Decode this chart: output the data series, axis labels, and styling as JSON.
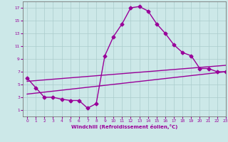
{
  "line1_x": [
    0,
    1,
    2,
    3,
    4,
    5,
    6,
    7,
    8,
    9,
    10,
    11,
    12,
    13,
    14,
    15,
    16,
    17,
    18,
    19,
    20,
    21,
    22,
    23
  ],
  "line1_y": [
    6.0,
    4.5,
    3.0,
    3.0,
    2.7,
    2.5,
    2.5,
    1.3,
    2.0,
    9.5,
    12.5,
    14.5,
    17.0,
    17.2,
    16.5,
    14.5,
    13.0,
    11.2,
    10.0,
    9.5,
    7.5,
    7.5,
    7.0,
    7.0
  ],
  "line2_x": [
    0,
    23
  ],
  "line2_y": [
    5.5,
    8.0
  ],
  "line3_x": [
    0,
    23
  ],
  "line3_y": [
    3.5,
    7.0
  ],
  "line_color": "#990099",
  "bg_color": "#cce8e8",
  "grid_color": "#aacccc",
  "xlabel": "Windchill (Refroidissement éolien,°C)",
  "xlim": [
    -0.5,
    23
  ],
  "ylim": [
    0,
    18
  ],
  "xticks": [
    0,
    1,
    2,
    3,
    4,
    5,
    6,
    7,
    8,
    9,
    10,
    11,
    12,
    13,
    14,
    15,
    16,
    17,
    18,
    19,
    20,
    21,
    22,
    23
  ],
  "yticks": [
    1,
    3,
    5,
    7,
    9,
    11,
    13,
    15,
    17
  ],
  "marker": "D",
  "markersize": 2.5,
  "linewidth": 1.0
}
